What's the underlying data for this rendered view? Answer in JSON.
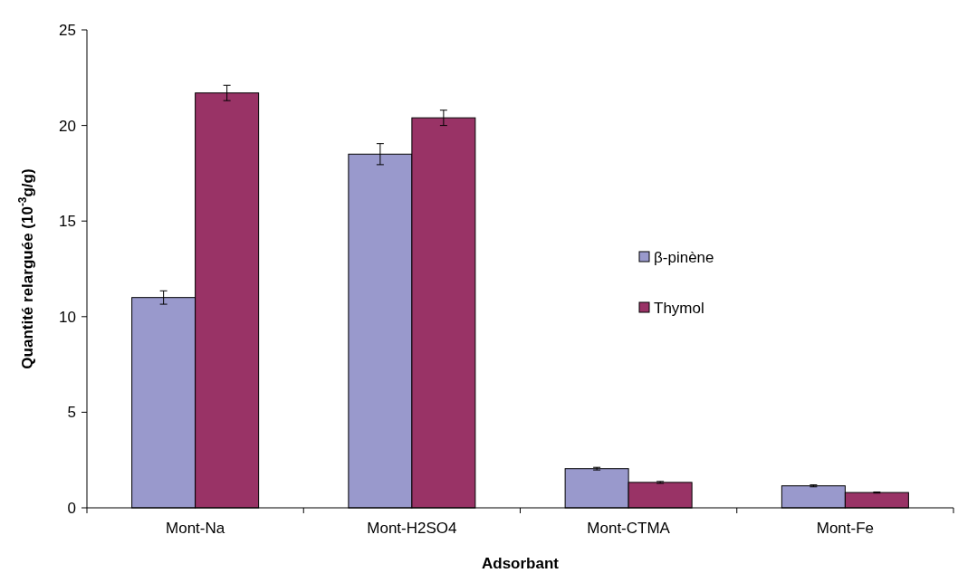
{
  "chart_data": {
    "type": "bar",
    "xlabel": "Adsorbant",
    "ylabel": "Quantité relarguée (10$^{-3}$g/g)",
    "categories": [
      "Mont-Na",
      "Mont-H2SO4",
      "Mont-CTMA",
      "Mont-Fe"
    ],
    "series": [
      {
        "name": "β-pinène",
        "color": "#9999cc",
        "values": [
          11.0,
          18.5,
          2.05,
          1.15
        ],
        "errors": [
          0.35,
          0.55,
          0.07,
          0.05
        ]
      },
      {
        "name": "Thymol",
        "color": "#993366",
        "values": [
          21.7,
          20.4,
          1.33,
          0.8
        ],
        "errors": [
          0.4,
          0.4,
          0.05,
          0.03
        ]
      }
    ],
    "ylim": [
      0,
      25
    ],
    "yticks": [
      0,
      5,
      10,
      15,
      20,
      25
    ],
    "grid": false,
    "legend": "right"
  }
}
